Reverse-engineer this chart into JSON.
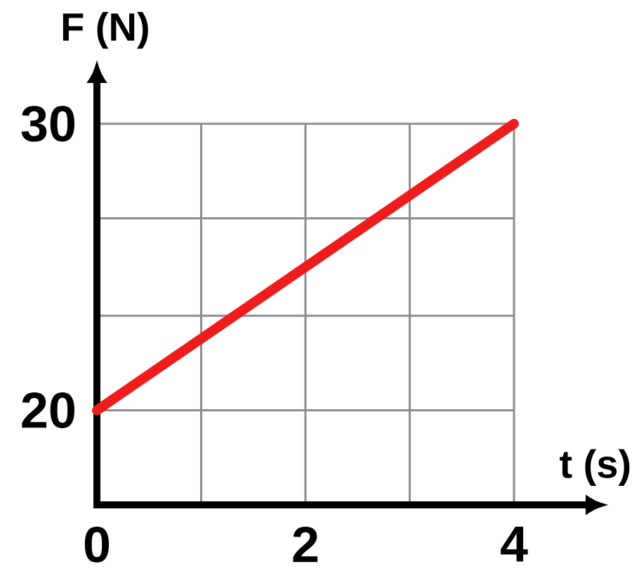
{
  "chart_data": {
    "type": "line",
    "xlabel": "t (s)",
    "ylabel": "F (N)",
    "x": [
      0,
      4
    ],
    "series": [
      {
        "color": "#ee1c1c",
        "values": [
          20,
          30
        ]
      }
    ],
    "xlim": [
      0,
      4
    ],
    "ylim": [
      16.7,
      30
    ],
    "xticks": [
      0,
      {
        "value": 1,
        "label": null
      },
      2,
      {
        "value": 3,
        "label": null
      },
      4
    ],
    "yticks": [
      20,
      {
        "value": 23.3,
        "label": null
      },
      {
        "value": 26.7,
        "label": null
      },
      30
    ],
    "grid": true,
    "marker": "none"
  }
}
